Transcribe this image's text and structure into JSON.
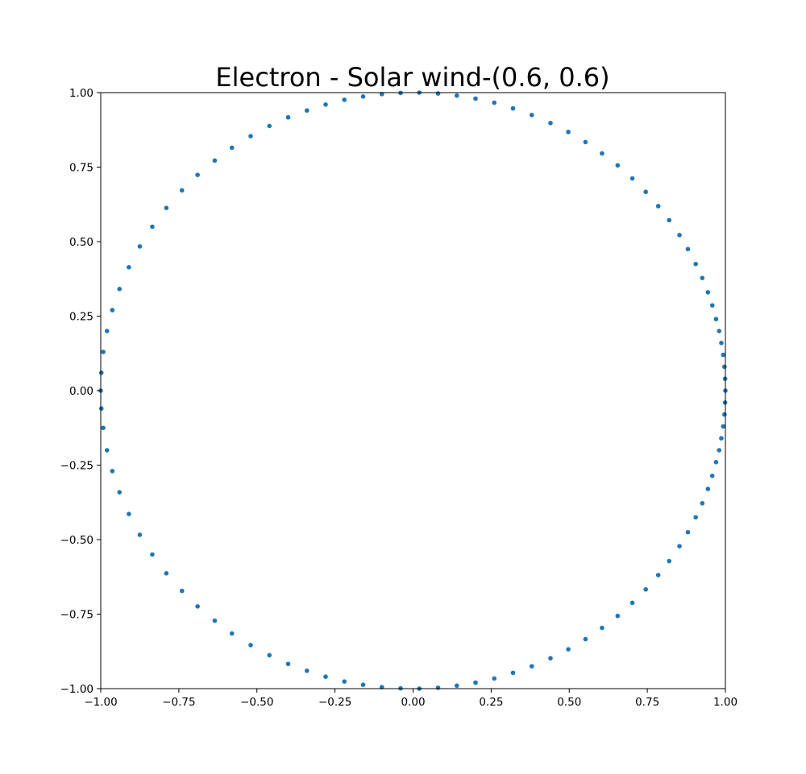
{
  "chart_data": {
    "type": "scatter",
    "title": "Electron - Solar wind-(0.6, 0.6)",
    "xlabel": "",
    "ylabel": "",
    "xlim": [
      -1.0,
      1.0
    ],
    "ylim": [
      -1.0,
      1.0
    ],
    "x_ticks": [
      "−1.00",
      "−0.75",
      "−0.50",
      "−0.25",
      "0.00",
      "0.25",
      "0.50",
      "0.75",
      "1.00"
    ],
    "y_ticks": [
      "−1.00",
      "−0.75",
      "−0.50",
      "−0.25",
      "0.00",
      "0.25",
      "0.50",
      "0.75",
      "1.00"
    ],
    "x_tick_values": [
      -1.0,
      -0.75,
      -0.5,
      -0.25,
      0.0,
      0.25,
      0.5,
      0.75,
      1.0
    ],
    "y_tick_values": [
      -1.0,
      -0.75,
      -0.5,
      -0.25,
      0.0,
      0.25,
      0.5,
      0.75,
      1.0
    ],
    "grid": false,
    "marker_color": "#1f77b4",
    "series": [
      {
        "points": [
          [
            1.0,
            0.0
          ],
          [
            0.999,
            0.04
          ],
          [
            0.997,
            0.08
          ],
          [
            0.993,
            0.12
          ],
          [
            0.987,
            0.16
          ],
          [
            0.98,
            0.2
          ],
          [
            0.97,
            0.24
          ],
          [
            0.958,
            0.286
          ],
          [
            0.944,
            0.33
          ],
          [
            0.926,
            0.378
          ],
          [
            0.905,
            0.425
          ],
          [
            0.88,
            0.475
          ],
          [
            0.853,
            0.522
          ],
          [
            0.82,
            0.572
          ],
          [
            0.785,
            0.619
          ],
          [
            0.745,
            0.667
          ],
          [
            0.702,
            0.712
          ],
          [
            0.655,
            0.756
          ],
          [
            0.605,
            0.796
          ],
          [
            0.552,
            0.834
          ],
          [
            0.497,
            0.868
          ],
          [
            0.44,
            0.898
          ],
          [
            0.38,
            0.925
          ],
          [
            0.32,
            0.947
          ],
          [
            0.26,
            0.966
          ],
          [
            0.2,
            0.98
          ],
          [
            0.14,
            0.99
          ],
          [
            0.08,
            0.997
          ],
          [
            0.02,
            1.0
          ],
          [
            -0.04,
            0.999
          ],
          [
            -0.1,
            0.995
          ],
          [
            -0.16,
            0.987
          ],
          [
            -0.22,
            0.976
          ],
          [
            -0.28,
            0.96
          ],
          [
            -0.34,
            0.94
          ],
          [
            -0.4,
            0.917
          ],
          [
            -0.46,
            0.888
          ],
          [
            -0.52,
            0.854
          ],
          [
            -0.58,
            0.815
          ],
          [
            -0.635,
            0.772
          ],
          [
            -0.69,
            0.724
          ],
          [
            -0.74,
            0.672
          ],
          [
            -0.79,
            0.613
          ],
          [
            -0.835,
            0.55
          ],
          [
            -0.875,
            0.484
          ],
          [
            -0.91,
            0.414
          ],
          [
            -0.94,
            0.341
          ],
          [
            -0.963,
            0.27
          ],
          [
            -0.98,
            0.2
          ],
          [
            -0.992,
            0.13
          ],
          [
            -0.998,
            0.06
          ],
          [
            -1.0,
            0.0
          ],
          [
            -0.998,
            -0.06
          ],
          [
            -0.992,
            -0.125
          ],
          [
            -0.98,
            -0.2
          ],
          [
            -0.963,
            -0.27
          ],
          [
            -0.94,
            -0.341
          ],
          [
            -0.91,
            -0.414
          ],
          [
            -0.875,
            -0.484
          ],
          [
            -0.835,
            -0.55
          ],
          [
            -0.79,
            -0.613
          ],
          [
            -0.74,
            -0.672
          ],
          [
            -0.69,
            -0.724
          ],
          [
            -0.635,
            -0.772
          ],
          [
            -0.58,
            -0.815
          ],
          [
            -0.52,
            -0.854
          ],
          [
            -0.46,
            -0.888
          ],
          [
            -0.4,
            -0.917
          ],
          [
            -0.34,
            -0.94
          ],
          [
            -0.28,
            -0.96
          ],
          [
            -0.22,
            -0.976
          ],
          [
            -0.16,
            -0.987
          ],
          [
            -0.1,
            -0.995
          ],
          [
            -0.04,
            -0.999
          ],
          [
            0.02,
            -1.0
          ],
          [
            0.08,
            -0.997
          ],
          [
            0.14,
            -0.99
          ],
          [
            0.2,
            -0.98
          ],
          [
            0.26,
            -0.966
          ],
          [
            0.32,
            -0.947
          ],
          [
            0.38,
            -0.925
          ],
          [
            0.44,
            -0.898
          ],
          [
            0.497,
            -0.868
          ],
          [
            0.552,
            -0.834
          ],
          [
            0.605,
            -0.796
          ],
          [
            0.655,
            -0.756
          ],
          [
            0.702,
            -0.712
          ],
          [
            0.745,
            -0.667
          ],
          [
            0.785,
            -0.619
          ],
          [
            0.82,
            -0.572
          ],
          [
            0.853,
            -0.522
          ],
          [
            0.88,
            -0.475
          ],
          [
            0.905,
            -0.425
          ],
          [
            0.926,
            -0.378
          ],
          [
            0.944,
            -0.33
          ],
          [
            0.958,
            -0.286
          ],
          [
            0.97,
            -0.24
          ],
          [
            0.98,
            -0.2
          ],
          [
            0.987,
            -0.16
          ],
          [
            0.993,
            -0.12
          ],
          [
            0.997,
            -0.08
          ],
          [
            0.999,
            -0.04
          ]
        ]
      }
    ]
  }
}
